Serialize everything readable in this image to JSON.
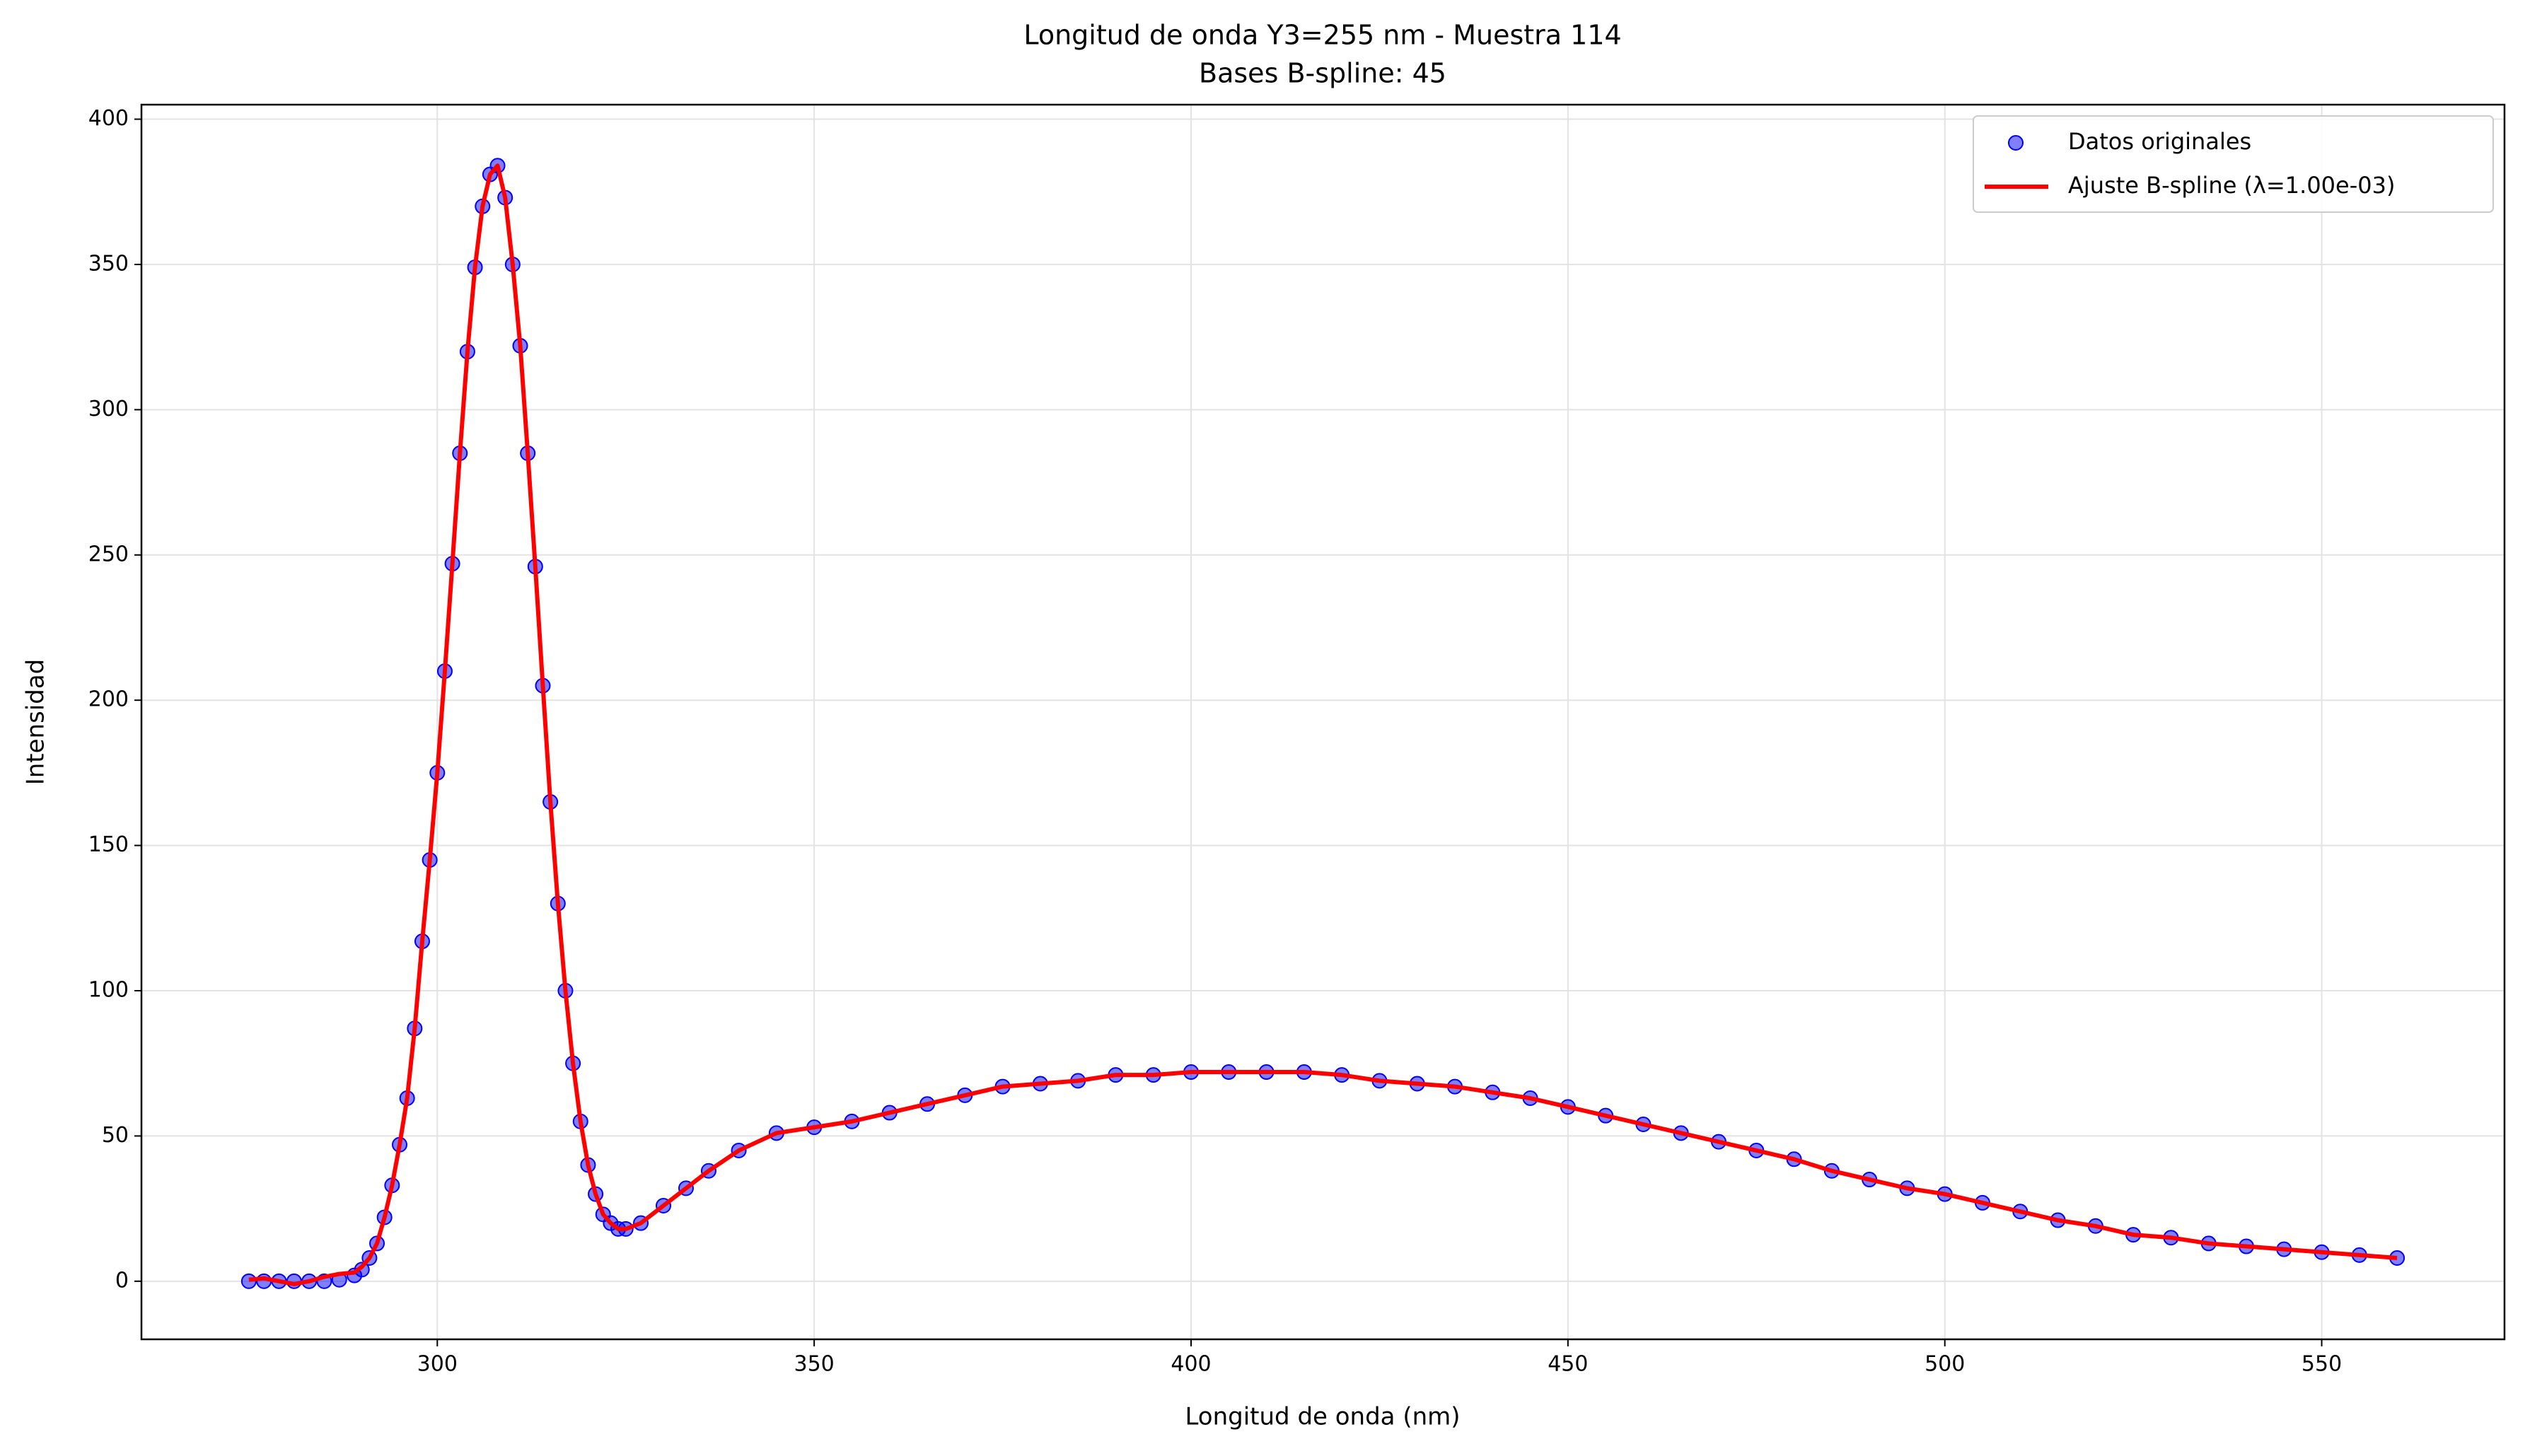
{
  "chart_data": {
    "type": "scatter",
    "title": "Longitud de onda Y3=255 nm - Muestra 114",
    "subtitle": "Bases B-spline: 45",
    "x_label": "Longitud de onda (nm)",
    "y_label": "Intensidad",
    "x": [
      275,
      277,
      279,
      281,
      283,
      285,
      287,
      289,
      290,
      291,
      292,
      293,
      294,
      295,
      296,
      297,
      298,
      299,
      300,
      301,
      302,
      303,
      304,
      305,
      306,
      307,
      308,
      309,
      310,
      311,
      312,
      313,
      314,
      315,
      316,
      317,
      318,
      319,
      320,
      321,
      322,
      323,
      324,
      325,
      327,
      330,
      333,
      336,
      340,
      345,
      350,
      355,
      360,
      365,
      370,
      375,
      380,
      385,
      390,
      395,
      400,
      405,
      410,
      415,
      420,
      425,
      430,
      435,
      440,
      445,
      450,
      455,
      460,
      465,
      470,
      475,
      480,
      485,
      490,
      495,
      500,
      505,
      510,
      515,
      520,
      525,
      530,
      535,
      540,
      545,
      550,
      555,
      560
    ],
    "series": [
      {
        "name": "Datos originales",
        "type": "scatter",
        "color": "#0000ff",
        "values": [
          0,
          0,
          0,
          0,
          0,
          0,
          0.5,
          2,
          4,
          8,
          13,
          22,
          33,
          47,
          63,
          87,
          117,
          145,
          175,
          210,
          247,
          285,
          320,
          349,
          370,
          381,
          384,
          373,
          350,
          322,
          285,
          246,
          205,
          165,
          130,
          100,
          75,
          55,
          40,
          30,
          23,
          20,
          18,
          18,
          20,
          26,
          32,
          38,
          45,
          51,
          53,
          55,
          58,
          61,
          64,
          67,
          68,
          69,
          71,
          71,
          72,
          72,
          72,
          72,
          71,
          69,
          68,
          67,
          65,
          63,
          60,
          57,
          54,
          51,
          48,
          45,
          42,
          38,
          35,
          32,
          30,
          27,
          24,
          21,
          19,
          16,
          15,
          13,
          12,
          11,
          10,
          9,
          8
        ]
      },
      {
        "name": "Ajuste B-spline (λ=1.00e-03)",
        "type": "line",
        "color": "#ff0000",
        "values": [
          0.5,
          1,
          0,
          -1,
          0,
          1.5,
          2.5,
          3,
          5,
          8,
          13,
          22,
          33,
          47,
          63,
          87,
          117,
          145,
          175,
          210,
          247,
          285,
          320,
          349,
          370,
          381,
          384,
          373,
          350,
          322,
          285,
          246,
          205,
          165,
          130,
          100,
          75,
          55,
          40,
          30,
          23,
          20,
          18,
          18,
          20,
          26,
          32,
          38,
          45,
          51,
          53,
          55,
          58,
          61,
          64,
          67,
          68,
          69,
          71,
          71,
          72,
          72,
          72,
          72,
          71,
          69,
          68,
          67,
          65,
          63,
          60,
          57,
          54,
          51,
          48,
          45,
          42,
          38,
          35,
          32,
          30,
          27,
          24,
          21,
          19,
          16,
          15,
          13,
          12,
          11,
          10,
          9,
          8
        ]
      }
    ],
    "xlim": [
      260.75,
      574.25
    ],
    "ylim": [
      -20,
      405
    ],
    "xticks": [
      300,
      350,
      400,
      450,
      500,
      550
    ],
    "yticks": [
      0,
      50,
      100,
      150,
      200,
      250,
      300,
      350,
      400
    ],
    "grid": true,
    "legend": "upper right"
  }
}
